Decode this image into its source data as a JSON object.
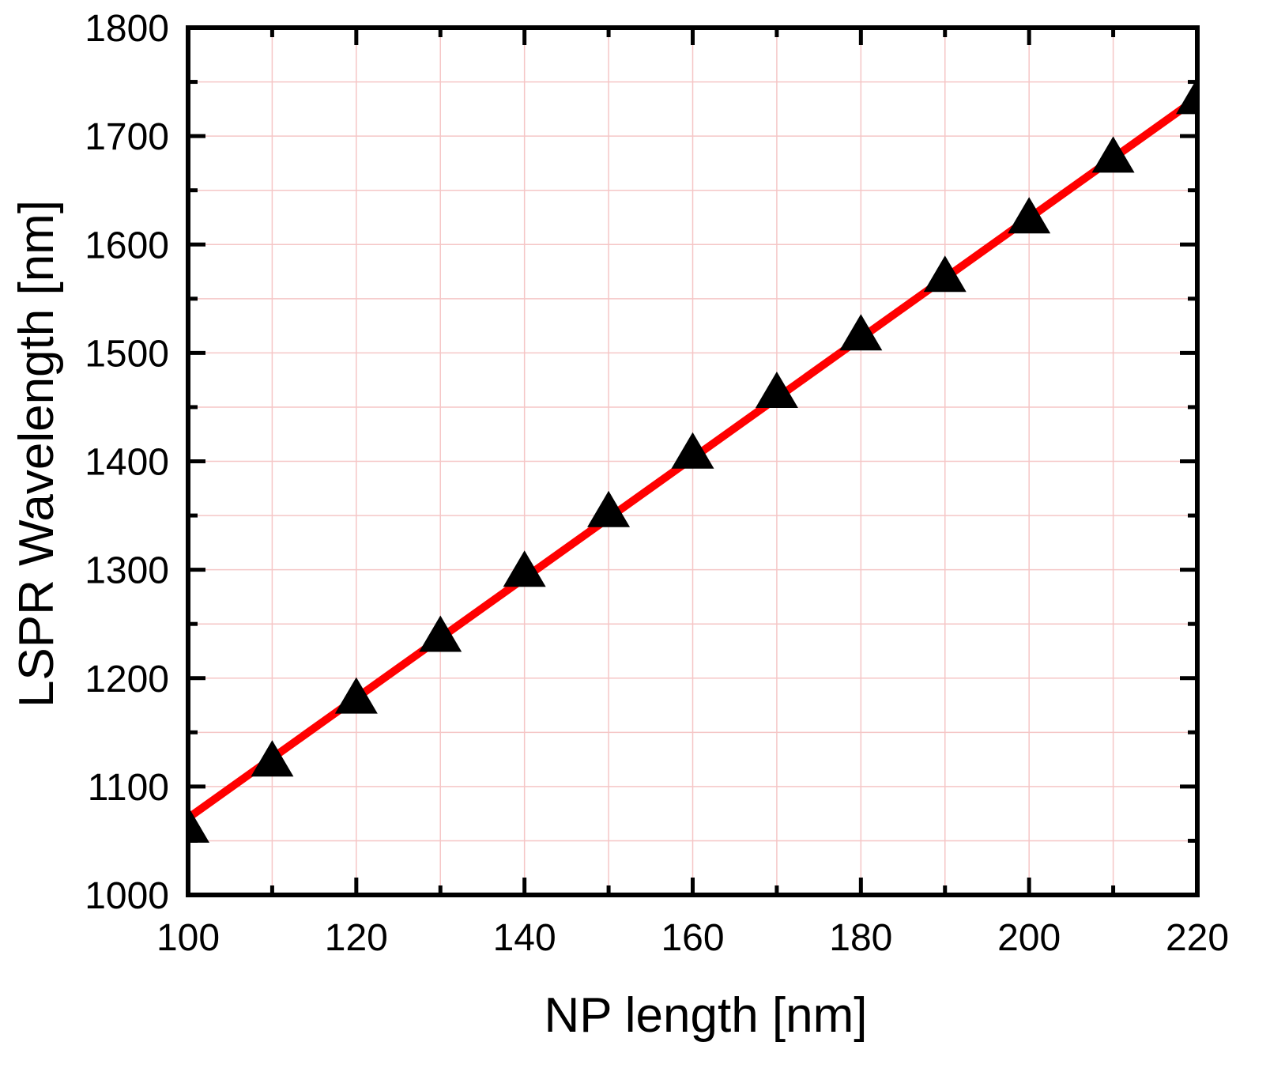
{
  "chart_data": {
    "type": "scatter",
    "title": "",
    "xlabel": "NP length [nm]",
    "ylabel": "LSPR Wavelength [nm]",
    "xlim": [
      100,
      220
    ],
    "ylim": [
      1000,
      1800
    ],
    "xticks": [
      100,
      120,
      140,
      160,
      180,
      200,
      220
    ],
    "xtick_labels": [
      "100",
      "120",
      "140",
      "160",
      "180",
      "200",
      "220"
    ],
    "yticks": [
      1000,
      1100,
      1200,
      1300,
      1400,
      1500,
      1600,
      1700,
      1800
    ],
    "ytick_labels": [
      "1000",
      "1100",
      "1200",
      "1300",
      "1400",
      "1500",
      "1600",
      "1700",
      "1800"
    ],
    "x_minor_step": 10,
    "y_minor_step": 50,
    "grid": true,
    "legend": "none",
    "series": [
      {
        "kind": "markers",
        "marker": "triangle",
        "color": "#000000",
        "x": [
          100,
          110,
          120,
          130,
          140,
          150,
          160,
          170,
          180,
          190,
          200,
          210,
          220
        ],
        "y": [
          1061,
          1122,
          1180,
          1237,
          1297,
          1352,
          1406,
          1462,
          1515,
          1569,
          1623,
          1679,
          1733
        ]
      },
      {
        "kind": "fit-line",
        "color": "#ff0000",
        "x": [
          100,
          220
        ],
        "y": [
          1071,
          1735
        ]
      }
    ]
  },
  "colors": {
    "grid": "#f5c6c6",
    "axis": "#000000",
    "fit_line": "#ff0000",
    "markers": "#000000"
  }
}
